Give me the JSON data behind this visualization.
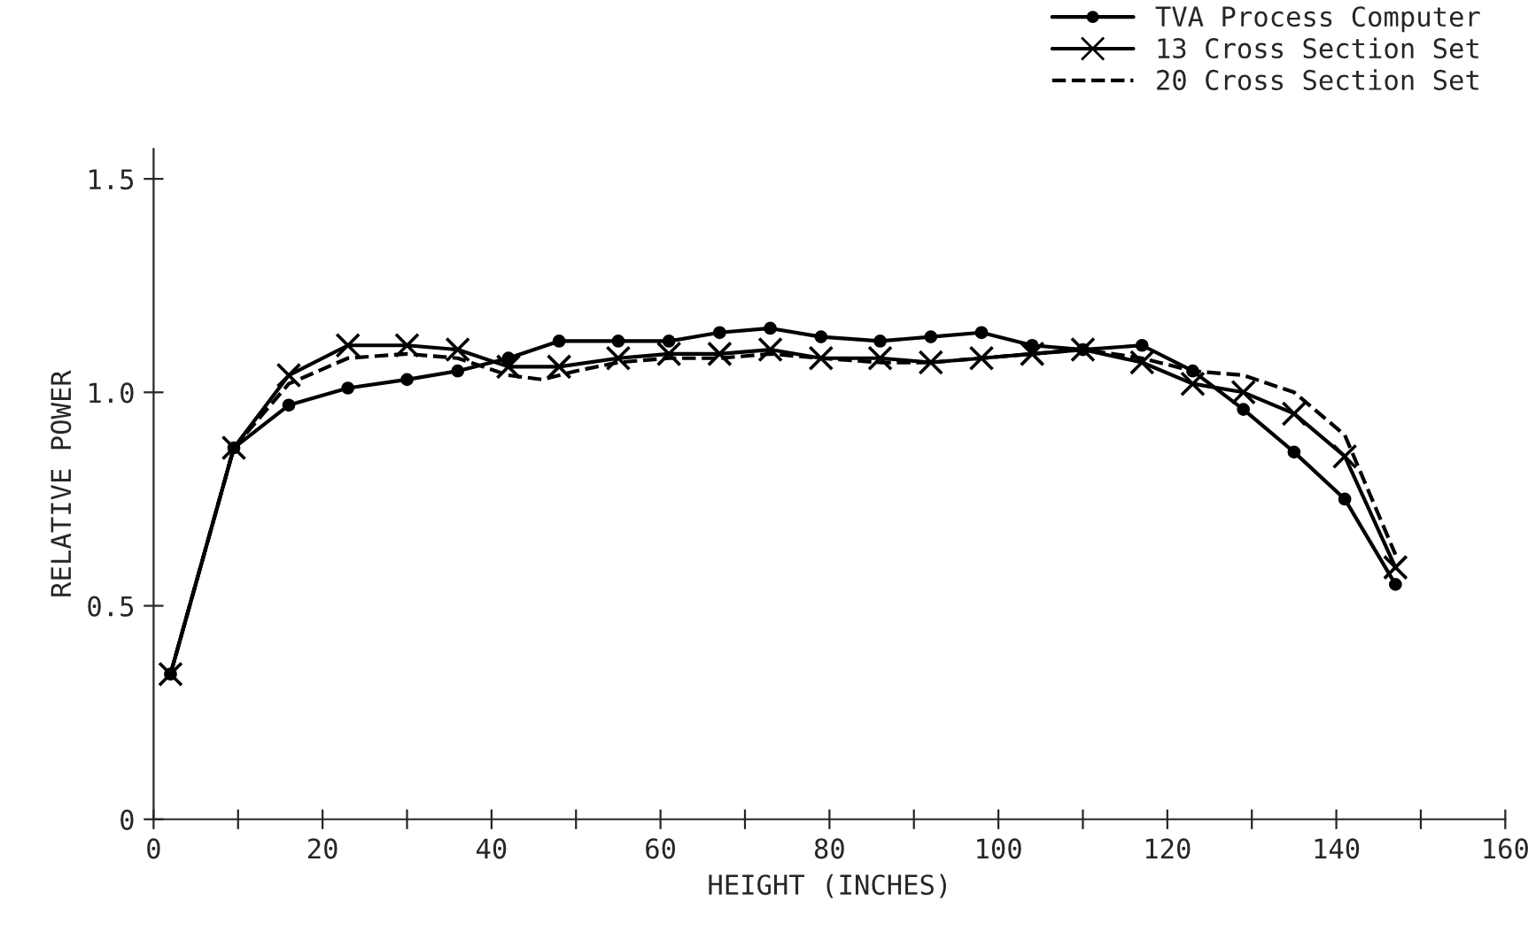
{
  "chart_data": {
    "type": "line",
    "xlabel": "HEIGHT (INCHES)",
    "ylabel": "RELATIVE POWER",
    "xlim": [
      0,
      160
    ],
    "ylim": [
      0,
      1.57
    ],
    "xticks": [
      0,
      {
        "value": 10,
        "label": null
      },
      20,
      {
        "value": 30,
        "label": null
      },
      40,
      {
        "value": 50,
        "label": null
      },
      60,
      {
        "value": 70,
        "label": null
      },
      80,
      {
        "value": 90,
        "label": null
      },
      100,
      {
        "value": 110,
        "label": null
      },
      120,
      {
        "value": 130,
        "label": null
      },
      140,
      {
        "value": 150,
        "label": null
      },
      160
    ],
    "yticks": [
      0,
      0.5,
      {
        "value": 1.0,
        "label": "1.0"
      },
      1.5
    ],
    "grid": false,
    "legend": "top right",
    "series": [
      {
        "name": "TVA Process Computer",
        "color": "#000000",
        "marker": "circle",
        "line_style": "solid",
        "x": [
          2,
          9.5,
          16,
          23,
          30,
          36,
          42,
          48,
          55,
          61,
          67,
          73,
          79,
          86,
          92,
          98,
          104,
          110,
          117,
          123,
          129,
          135,
          141,
          147
        ],
        "values": [
          0.34,
          0.87,
          0.97,
          1.01,
          1.03,
          1.05,
          1.08,
          1.12,
          1.12,
          1.12,
          1.14,
          1.15,
          1.13,
          1.12,
          1.13,
          1.14,
          1.11,
          1.1,
          1.11,
          1.05,
          0.96,
          0.86,
          0.75,
          0.55
        ]
      },
      {
        "name": "13 Cross Section Set",
        "color": "#000000",
        "marker": "cross",
        "line_style": "solid",
        "x": [
          2,
          9.5,
          16,
          23,
          30,
          36,
          42,
          48,
          55,
          61,
          67,
          73,
          79,
          86,
          92,
          98,
          104,
          110,
          117,
          123,
          129,
          135,
          141,
          147
        ],
        "values": [
          0.34,
          0.87,
          1.04,
          1.11,
          1.11,
          1.1,
          1.06,
          1.06,
          1.08,
          1.09,
          1.09,
          1.1,
          1.08,
          1.08,
          1.07,
          1.08,
          1.09,
          1.1,
          1.07,
          1.02,
          1.0,
          0.95,
          0.85,
          0.59
        ]
      },
      {
        "name": "20 Cross Section Set",
        "color": "#000000",
        "marker": "none",
        "line_style": "dashed",
        "x": [
          2,
          9.5,
          16,
          23,
          30,
          36,
          42,
          46,
          50,
          55,
          61,
          67,
          73,
          79,
          86,
          92,
          98,
          104,
          110,
          117,
          123,
          129,
          135,
          141,
          147
        ],
        "values": [
          0.34,
          0.87,
          1.02,
          1.08,
          1.09,
          1.08,
          1.04,
          1.03,
          1.05,
          1.07,
          1.08,
          1.08,
          1.09,
          1.08,
          1.07,
          1.07,
          1.08,
          1.09,
          1.1,
          1.08,
          1.05,
          1.04,
          1.0,
          0.9,
          0.62
        ]
      }
    ]
  }
}
